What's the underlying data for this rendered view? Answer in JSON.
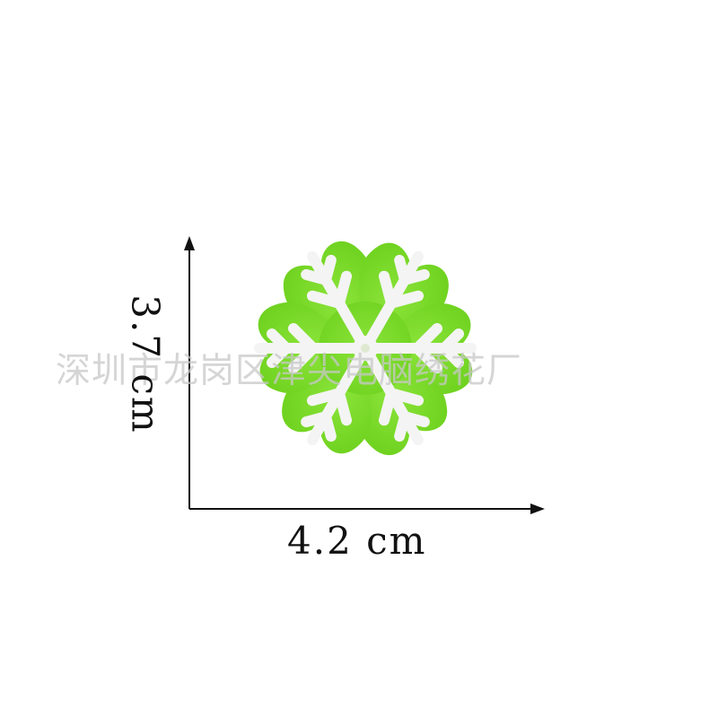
{
  "dimensions": {
    "height_label": "3.7 cm",
    "width_label": "4.2 cm"
  },
  "watermark": {
    "text": "深圳市龙岗区津尖电脑绣花厂"
  },
  "patch": {
    "subject": "snowflake-embroidered-patch",
    "fill_color": "#7ddc2a",
    "stitch_color": "#f3f3f3"
  }
}
